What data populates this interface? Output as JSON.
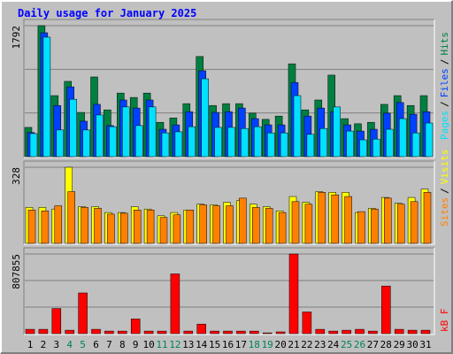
{
  "chart_data": [
    {
      "type": "bar",
      "title": "Daily usage for January 2025",
      "series": [
        {
          "name": "Hits",
          "color": "#008040",
          "values": [
            400,
            1792,
            835,
            1030,
            605,
            1090,
            640,
            870,
            810,
            870,
            470,
            530,
            725,
            1370,
            700,
            725,
            725,
            595,
            510,
            555,
            1270,
            640,
            775,
            1115,
            520,
            450,
            470,
            715,
            835,
            700,
            835
          ]
        },
        {
          "name": "Files",
          "color": "#0040ff",
          "values": [
            330,
            1695,
            700,
            955,
            485,
            715,
            425,
            775,
            665,
            775,
            375,
            435,
            615,
            1175,
            605,
            615,
            665,
            520,
            435,
            435,
            1015,
            555,
            665,
            615,
            435,
            350,
            375,
            595,
            740,
            580,
            615
          ]
        },
        {
          "name": "Pages",
          "color": "#00e0ff",
          "values": [
            315,
            1635,
            365,
            785,
            365,
            570,
            410,
            680,
            425,
            680,
            325,
            340,
            410,
            1065,
            400,
            400,
            385,
            410,
            325,
            325,
            835,
            305,
            385,
            680,
            350,
            230,
            240,
            375,
            520,
            325,
            460
          ]
        }
      ],
      "ylim": [
        0,
        1792
      ],
      "yticks": [
        1792
      ],
      "grid_divisions": 3,
      "separator": "/"
    },
    {
      "type": "bar",
      "series": [
        {
          "name": "Visits",
          "color": "#ffff00",
          "values": [
            155,
            155,
            148,
            328,
            158,
            158,
            133,
            133,
            158,
            148,
            119,
            133,
            144,
            169,
            166,
            177,
            184,
            169,
            158,
            140,
            202,
            177,
            223,
            220,
            220,
            133,
            151,
            198,
            173,
            198,
            234
          ]
        },
        {
          "name": "Sites",
          "color": "#ff8000",
          "values": [
            144,
            140,
            162,
            223,
            155,
            151,
            126,
            130,
            144,
            144,
            112,
            123,
            144,
            166,
            162,
            162,
            195,
            155,
            151,
            133,
            180,
            169,
            220,
            209,
            202,
            137,
            148,
            195,
            169,
            180,
            220
          ]
        }
      ],
      "ylim": [
        0,
        328
      ],
      "yticks": [
        328
      ],
      "grid_divisions": 0,
      "separator": "/"
    },
    {
      "type": "bar",
      "series": [
        {
          "name": "kB F",
          "color": "#ff0000",
          "values": [
            44000,
            44000,
            255000,
            35000,
            413000,
            44000,
            26000,
            26000,
            149000,
            26000,
            26000,
            606000,
            26000,
            97000,
            26000,
            26000,
            26000,
            26000,
            8000,
            18000,
            807855,
            220000,
            44000,
            26000,
            35000,
            44000,
            26000,
            483000,
            44000,
            35000,
            35000
          ]
        }
      ],
      "categories": [
        "1",
        "2",
        "3",
        "4",
        "5",
        "6",
        "7",
        "8",
        "9",
        "10",
        "11",
        "12",
        "13",
        "14",
        "15",
        "16",
        "17",
        "18",
        "19",
        "20",
        "21",
        "22",
        "23",
        "24",
        "25",
        "26",
        "27",
        "28",
        "29",
        "30",
        "31"
      ],
      "weekend_indices": [
        3,
        4,
        10,
        11,
        17,
        18,
        24,
        25
      ],
      "weekend_color": "#00805c",
      "ylim": [
        0,
        807855
      ],
      "yticks": [
        807855
      ],
      "grid_divisions": 3
    }
  ]
}
